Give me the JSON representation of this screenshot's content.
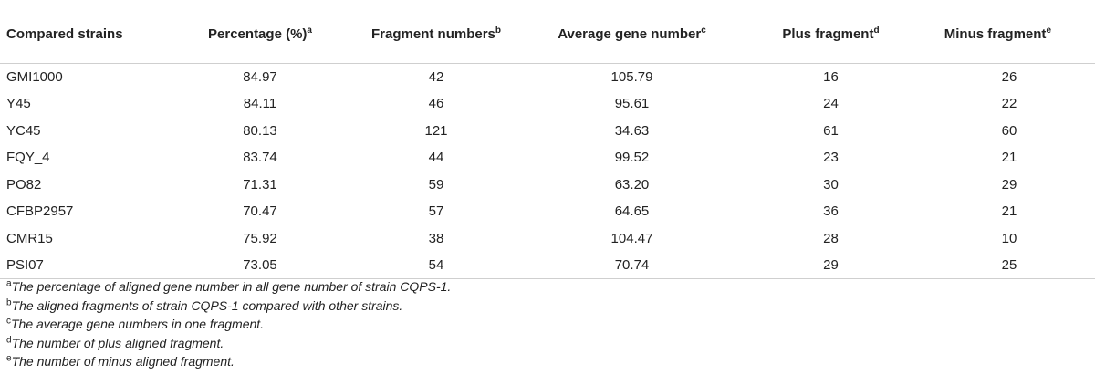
{
  "table": {
    "headers": [
      {
        "text": "Compared strains",
        "sup": ""
      },
      {
        "text": "Percentage (%)",
        "sup": "a"
      },
      {
        "text": "Fragment numbers",
        "sup": "b"
      },
      {
        "text": "Average gene number",
        "sup": "c"
      },
      {
        "text": "Plus fragment",
        "sup": "d"
      },
      {
        "text": "Minus fragment",
        "sup": "e"
      }
    ],
    "rows": [
      [
        "GMI1000",
        "84.97",
        "42",
        "105.79",
        "16",
        "26"
      ],
      [
        "Y45",
        "84.11",
        "46",
        "95.61",
        "24",
        "22"
      ],
      [
        "YC45",
        "80.13",
        "121",
        "34.63",
        "61",
        "60"
      ],
      [
        "FQY_4",
        "83.74",
        "44",
        "99.52",
        "23",
        "21"
      ],
      [
        "PO82",
        "71.31",
        "59",
        "63.20",
        "30",
        "29"
      ],
      [
        "CFBP2957",
        "70.47",
        "57",
        "64.65",
        "36",
        "21"
      ],
      [
        "CMR15",
        "75.92",
        "38",
        "104.47",
        "28",
        "10"
      ],
      [
        "PSI07",
        "73.05",
        "54",
        "70.74",
        "29",
        "25"
      ]
    ]
  },
  "footnotes": [
    {
      "mark": "a",
      "text": "The percentage of aligned gene number in all gene number of strain CQPS-1."
    },
    {
      "mark": "b",
      "text": "The aligned fragments of strain CQPS-1 compared with other strains."
    },
    {
      "mark": "c",
      "text": "The average gene numbers in one fragment."
    },
    {
      "mark": "d",
      "text": "The number of plus aligned fragment."
    },
    {
      "mark": "e",
      "text": "The number of minus aligned fragment."
    }
  ]
}
